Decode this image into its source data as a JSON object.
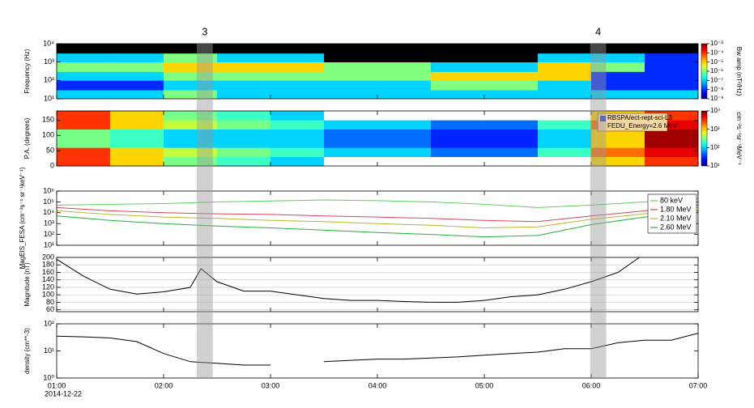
{
  "events": [
    {
      "label": "3",
      "start": 2.31,
      "end": 2.46
    },
    {
      "label": "4",
      "start": 5.99,
      "end": 6.14
    }
  ],
  "chart_data": [
    {
      "type": "heatmap",
      "ylabel": "Frequency (Hz)",
      "ylog": true,
      "ylim": [
        10,
        10000
      ],
      "yticks": [
        {
          "value": 10,
          "label": "10¹"
        },
        {
          "value": 100,
          "label": "10²"
        },
        {
          "value": 1000,
          "label": "10³"
        },
        {
          "value": 10000,
          "label": "10⁴"
        }
      ],
      "xlim": [
        1,
        7
      ],
      "xbins": [
        1,
        1.5,
        2,
        2.5,
        3,
        3.5,
        4,
        4.5,
        5,
        5.5,
        6,
        6.5,
        7
      ],
      "ybins": [
        10,
        30,
        100,
        300,
        1000,
        3000,
        10000
      ],
      "values": [
        [
          1e-07,
          1e-07,
          1e-06,
          1e-07,
          1e-07,
          1e-07,
          1e-07,
          1e-07,
          1e-07,
          1e-07,
          1e-07,
          1e-07
        ],
        [
          1e-08,
          1e-08,
          1e-07,
          1e-07,
          1e-07,
          1e-07,
          1e-07,
          1e-06,
          1e-06,
          1e-07,
          1e-08,
          1e-08
        ],
        [
          1e-07,
          1e-07,
          1e-06,
          1e-06,
          1e-06,
          1e-06,
          1e-06,
          1e-05,
          1e-05,
          1e-05,
          1e-08,
          1e-08
        ],
        [
          1e-06,
          1e-06,
          1e-05,
          1e-05,
          1e-05,
          1e-06,
          1e-06,
          1e-07,
          1e-07,
          1e-05,
          1e-06,
          1e-08
        ],
        [
          1e-07,
          1e-07,
          1e-06,
          1e-07,
          1e-07,
          null,
          null,
          null,
          null,
          1e-07,
          1e-07,
          1e-08
        ],
        [
          null,
          null,
          null,
          null,
          null,
          null,
          null,
          null,
          null,
          null,
          null,
          null
        ]
      ],
      "null_color": "#000000",
      "colorbar": {
        "label": "Bw amp (nT²/Hz)",
        "lim": [
          1e-09,
          0.001
        ],
        "ticks": [
          {
            "value": 0.001,
            "label": "10⁻³"
          },
          {
            "value": 0.0001,
            "label": "10⁻⁴"
          },
          {
            "value": 1e-05,
            "label": "10⁻⁵"
          },
          {
            "value": 1e-06,
            "label": "10⁻⁶"
          },
          {
            "value": 1e-07,
            "label": "10⁻⁷"
          },
          {
            "value": 1e-08,
            "label": "10⁻⁸"
          },
          {
            "value": 1e-09,
            "label": "10⁻⁹"
          }
        ]
      }
    },
    {
      "type": "heatmap",
      "ylabel": "P.A. (degrees)",
      "ylim": [
        0,
        180
      ],
      "yticks": [
        0,
        50,
        100,
        150
      ],
      "xlim": [
        1,
        7
      ],
      "xbins": [
        1,
        1.5,
        2,
        2.5,
        3,
        3.5,
        4,
        4.5,
        5,
        5.5,
        6,
        6.5,
        7
      ],
      "ybins": [
        0,
        30,
        60,
        90,
        120,
        150,
        180
      ],
      "values": [
        [
          3000,
          1000,
          300,
          200,
          100,
          null,
          null,
          null,
          null,
          null,
          1000,
          3000
        ],
        [
          3000,
          1000,
          500,
          300,
          200,
          100,
          100,
          50,
          50,
          200,
          2000,
          5000
        ],
        [
          300,
          200,
          100,
          100,
          100,
          50,
          50,
          30,
          30,
          100,
          1000,
          8000
        ],
        [
          300,
          200,
          100,
          100,
          100,
          50,
          50,
          30,
          30,
          100,
          1000,
          8000
        ],
        [
          3000,
          1000,
          500,
          300,
          200,
          100,
          100,
          50,
          50,
          200,
          2000,
          5000
        ],
        [
          3000,
          1000,
          300,
          200,
          100,
          null,
          null,
          null,
          null,
          null,
          1000,
          3000
        ]
      ],
      "null_color": "#ffffff",
      "legend_text": [
        "RBSPA/ect-rept-sci-L3",
        "FEDU_Energy=2.6 MeV"
      ],
      "colorbar": {
        "label": "cm⁻²s⁻¹sr⁻¹MeV⁻¹",
        "lim": [
          10,
          10000
        ],
        "ticks": [
          {
            "value": 10000,
            "label": "10⁴"
          },
          {
            "value": 1000,
            "label": "10³"
          },
          {
            "value": 100,
            "label": "10²"
          },
          {
            "value": 10,
            "label": "10¹"
          }
        ]
      }
    },
    {
      "type": "line",
      "ylabel": "MagEIS_FESA (cm⁻²s⁻¹ sr⁻¹keV⁻¹)",
      "ylog": true,
      "ylim": [
        10,
        1000000
      ],
      "yticks": [
        {
          "value": 10,
          "label": "10¹"
        },
        {
          "value": 100,
          "label": "10²"
        },
        {
          "value": 1000,
          "label": "10³"
        },
        {
          "value": 10000,
          "label": "10⁴"
        },
        {
          "value": 100000,
          "label": "10⁵"
        },
        {
          "value": 1000000,
          "label": "10⁶"
        }
      ],
      "xlim": [
        1,
        7
      ],
      "x": [
        1,
        1.5,
        2,
        2.5,
        3,
        3.5,
        4,
        4.5,
        5,
        5.5,
        6,
        6.5,
        7
      ],
      "series": [
        {
          "name": "80 keV",
          "color": "#5ccf5c",
          "values": [
            50000,
            60000,
            70000,
            100000,
            120000,
            150000,
            130000,
            100000,
            60000,
            30000,
            50000,
            100000,
            200000
          ]
        },
        {
          "name": "1.80 MeV",
          "color": "#d9455f",
          "values": [
            30000,
            15000,
            10000,
            8000,
            7000,
            5000,
            4000,
            3000,
            2000,
            1500,
            5000,
            15000,
            50000
          ]
        },
        {
          "name": "2.10 MeV",
          "color": "#b5b832",
          "values": [
            15000,
            7000,
            4000,
            3000,
            2000,
            1500,
            1000,
            700,
            400,
            500,
            2500,
            8000,
            30000
          ]
        },
        {
          "name": "2.60 MeV",
          "color": "#22b03a",
          "values": [
            5000,
            2000,
            1000,
            600,
            400,
            250,
            150,
            100,
            60,
            80,
            800,
            4000,
            15000
          ]
        }
      ]
    },
    {
      "type": "line",
      "ylabel": "Magnitude (nT)",
      "ylim": [
        55,
        200
      ],
      "yticks": [
        60,
        80,
        100,
        120,
        140,
        160,
        180,
        200
      ],
      "grid": true,
      "xlim": [
        1,
        7
      ],
      "x": [
        1,
        1.25,
        1.5,
        1.75,
        2,
        2.25,
        2.35,
        2.5,
        2.75,
        3,
        3.25,
        3.5,
        3.75,
        4,
        4.25,
        4.5,
        4.75,
        5,
        5.25,
        5.5,
        5.75,
        6,
        6.25,
        6.45
      ],
      "color": "#000000",
      "values": [
        195,
        150,
        115,
        102,
        108,
        120,
        170,
        135,
        110,
        110,
        100,
        90,
        85,
        85,
        82,
        80,
        80,
        85,
        95,
        100,
        115,
        135,
        160,
        200
      ]
    },
    {
      "type": "line",
      "ylabel": "density (cm**-3)",
      "ylog": true,
      "ylim": [
        1,
        100
      ],
      "yticks": [
        {
          "value": 1,
          "label": "10⁰"
        },
        {
          "value": 10,
          "label": "10¹"
        },
        {
          "value": 100,
          "label": "10²"
        }
      ],
      "xlim": [
        1,
        7
      ],
      "xticks": [
        {
          "value": 1,
          "label": "01:00"
        },
        {
          "value": 2,
          "label": "02:00"
        },
        {
          "value": 3,
          "label": "03:00"
        },
        {
          "value": 4,
          "label": "04:00"
        },
        {
          "value": 5,
          "label": "05:00"
        },
        {
          "value": 6,
          "label": "06:00"
        },
        {
          "value": 7,
          "label": "07:00"
        }
      ],
      "date_label": "2014-12-22",
      "x": [
        1,
        1.25,
        1.5,
        1.75,
        2,
        2.25,
        2.5,
        2.75,
        3,
        3.25,
        3.5,
        3.75,
        4,
        4.25,
        4.5,
        4.75,
        5,
        5.25,
        5.5,
        5.75,
        6,
        6.25,
        6.5,
        6.75,
        7
      ],
      "color": "#000000",
      "values": [
        35,
        33,
        30,
        22,
        8,
        4,
        3.5,
        3,
        3,
        null,
        4,
        4.5,
        5,
        5,
        5.5,
        6,
        7,
        8,
        9,
        12,
        12,
        20,
        25,
        25,
        45
      ]
    }
  ]
}
